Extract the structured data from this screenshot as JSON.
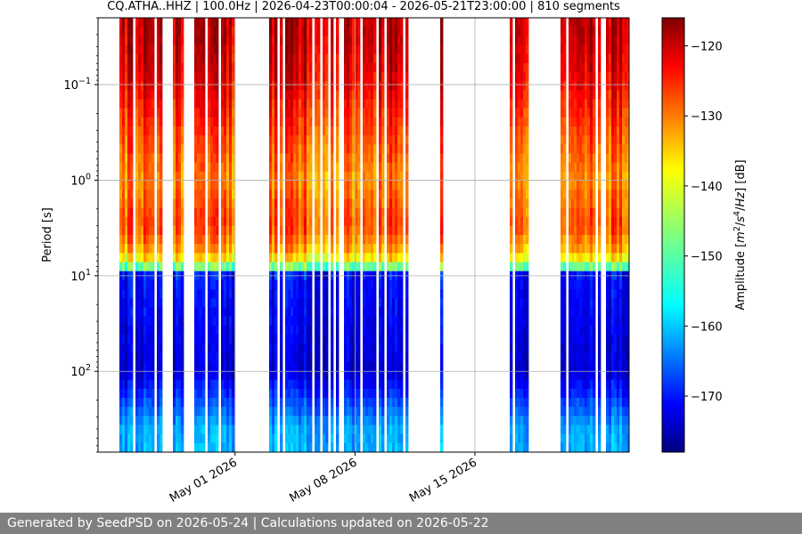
{
  "chart_data": {
    "type": "heatmap",
    "title": "CQ.ATHA..HHZ | 100.0Hz | 2026-04-23T00:00:04 - 2026-05-21T23:00:00 | 810 segments",
    "ylabel": "Period [s]",
    "y_scale": "log",
    "y_inverted": true,
    "ylim": [
      0.02,
      700
    ],
    "y_ticks": [
      {
        "value": 0.1,
        "label": "10",
        "exp": "−1"
      },
      {
        "value": 1,
        "label": "10",
        "exp": "0"
      },
      {
        "value": 10,
        "label": "10",
        "exp": "1"
      },
      {
        "value": 100,
        "label": "10",
        "exp": "2"
      }
    ],
    "xlim": [
      "2026-04-23",
      "2026-05-24"
    ],
    "x_ticks": [
      {
        "value": "2026-05-01",
        "label": "May 01 2026"
      },
      {
        "value": "2026-05-08",
        "label": "May 08 2026"
      },
      {
        "value": "2026-05-15",
        "label": "May 15 2026"
      }
    ],
    "colorbar": {
      "label_parts": [
        "Amplitude [",
        "m",
        "2",
        "/",
        "s",
        "4",
        "/",
        "Hz",
        "] [dB]"
      ],
      "range": [
        -178,
        -116
      ],
      "ticks": [
        -120,
        -130,
        -140,
        -150,
        -160,
        -170
      ],
      "colormap": "jet"
    },
    "grid": true,
    "data_gaps": [
      [
        "2026-04-23",
        "2026-04-23"
      ],
      [
        "2026-05-01",
        "2026-05-02"
      ],
      [
        "2026-05-11",
        "2026-05-12"
      ],
      [
        "2026-05-13",
        "2026-05-15"
      ],
      [
        "2026-05-15",
        "2026-05-16"
      ],
      [
        "2026-05-18",
        "2026-05-19"
      ]
    ],
    "series": [
      {
        "period_s": 0.03,
        "amplitude_db": -120
      },
      {
        "period_s": 0.1,
        "amplitude_db": -123
      },
      {
        "period_s": 0.3,
        "amplitude_db": -128
      },
      {
        "period_s": 1,
        "amplitude_db": -132
      },
      {
        "period_s": 3,
        "amplitude_db": -128
      },
      {
        "period_s": 6,
        "amplitude_db": -135
      },
      {
        "period_s": 8,
        "amplitude_db": -148
      },
      {
        "period_s": 10,
        "amplitude_db": -170
      },
      {
        "period_s": 100,
        "amplitude_db": -173
      },
      {
        "period_s": 400,
        "amplitude_db": -160
      }
    ]
  },
  "footer": {
    "text": "Generated by SeedPSD on 2026-05-24 | Calculations updated on 2026-05-22"
  }
}
